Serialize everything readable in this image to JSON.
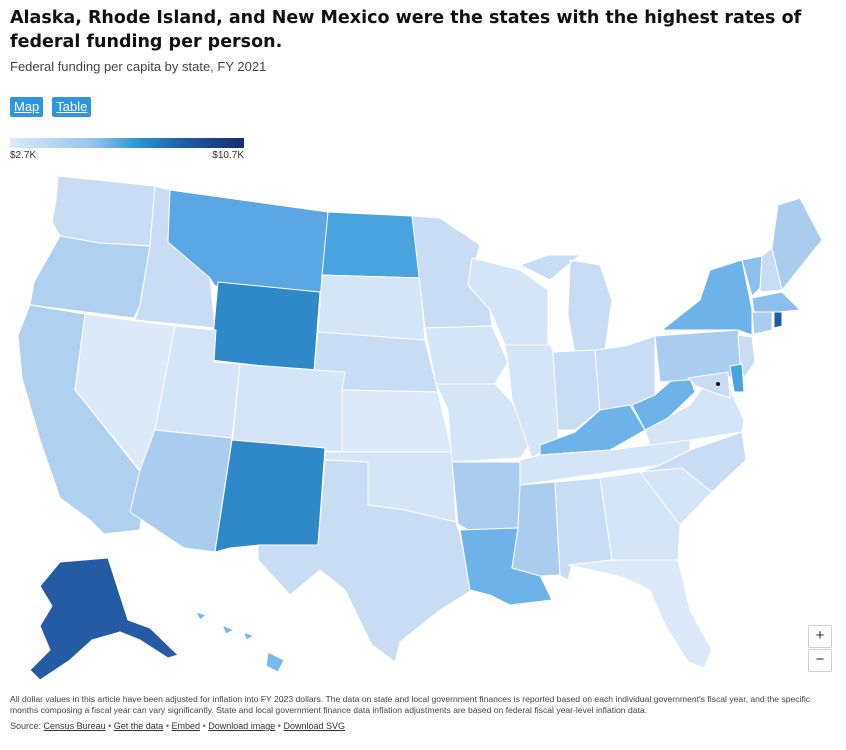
{
  "header": {
    "title": "Alaska, Rhode Island, and New Mexico were the states with the highest rates of federal funding per person.",
    "subtitle": "Federal funding per capita by state, FY 2021"
  },
  "tabs": [
    {
      "label": "Map",
      "active": true
    },
    {
      "label": "Table",
      "active": false
    }
  ],
  "legend": {
    "min_label": "$2.7K",
    "max_label": "$10.7K",
    "colors": [
      "#dbe9f8",
      "#97c4ec",
      "#2796d6",
      "#1e5aa6",
      "#1b2b6b"
    ]
  },
  "map_data": {
    "type": "choropleth",
    "region": "United States",
    "value_range_label": [
      "$2.7K",
      "$10.7K"
    ],
    "state_fills": {
      "WA": "#c8ddf4",
      "OR": "#b0d0f0",
      "CA": "#b0d0f0",
      "NV": "#dbe9f8",
      "ID": "#c8ddf4",
      "MT": "#5aa7e3",
      "WY": "#2f88c8",
      "UT": "#d3e5f7",
      "CO": "#d3e5f7",
      "AZ": "#aacdef",
      "NM": "#2f88c8",
      "ND": "#49a3df",
      "SD": "#d3e5f7",
      "NE": "#c8ddf4",
      "KS": "#dbe9f8",
      "OK": "#d3e5f7",
      "TX": "#c8ddf4",
      "MN": "#c8ddf4",
      "IA": "#d3e5f7",
      "MO": "#d3e5f7",
      "AR": "#aacdef",
      "LA": "#6db3ea",
      "WI": "#d3e5f7",
      "IL": "#d3e5f7",
      "MI": "#c8ddf4",
      "IN": "#c8ddf4",
      "OH": "#c8ddf4",
      "KY": "#6db3ea",
      "TN": "#d3e5f7",
      "MS": "#aacdef",
      "AL": "#c8ddf4",
      "GA": "#d3e5f7",
      "FL": "#dbe9f8",
      "SC": "#d3e5f7",
      "NC": "#c8ddf4",
      "VA": "#d3e5f7",
      "WV": "#6db3ea",
      "PA": "#aacdef",
      "NY": "#6db3ea",
      "VT": "#8cc0ec",
      "NH": "#c8ddf4",
      "ME": "#aacdef",
      "MA": "#8cc0ec",
      "RI": "#1e5aa6",
      "CT": "#aacdef",
      "NJ": "#c8ddf4",
      "DE": "#49a3df",
      "MD": "#c8ddf4",
      "AK": "#245ba3",
      "HI": "#7bb8ea"
    }
  },
  "zoom": {
    "in_label": "+",
    "out_label": "−"
  },
  "footer": {
    "note": "All dollar values in this article have been adjusted for inflation into FY 2023 dollars. The data on state and local government finances is reported based on each individual government's fiscal year, and the specific months composing a fiscal year can vary significantly. State and local government finance data inflation adjustments are based on federal fiscal year-level inflation data.",
    "source_prefix": "Source:",
    "links": [
      "Census Bureau",
      "Get the data",
      "Embed",
      "Download image",
      "Download SVG"
    ],
    "separator": "•"
  }
}
